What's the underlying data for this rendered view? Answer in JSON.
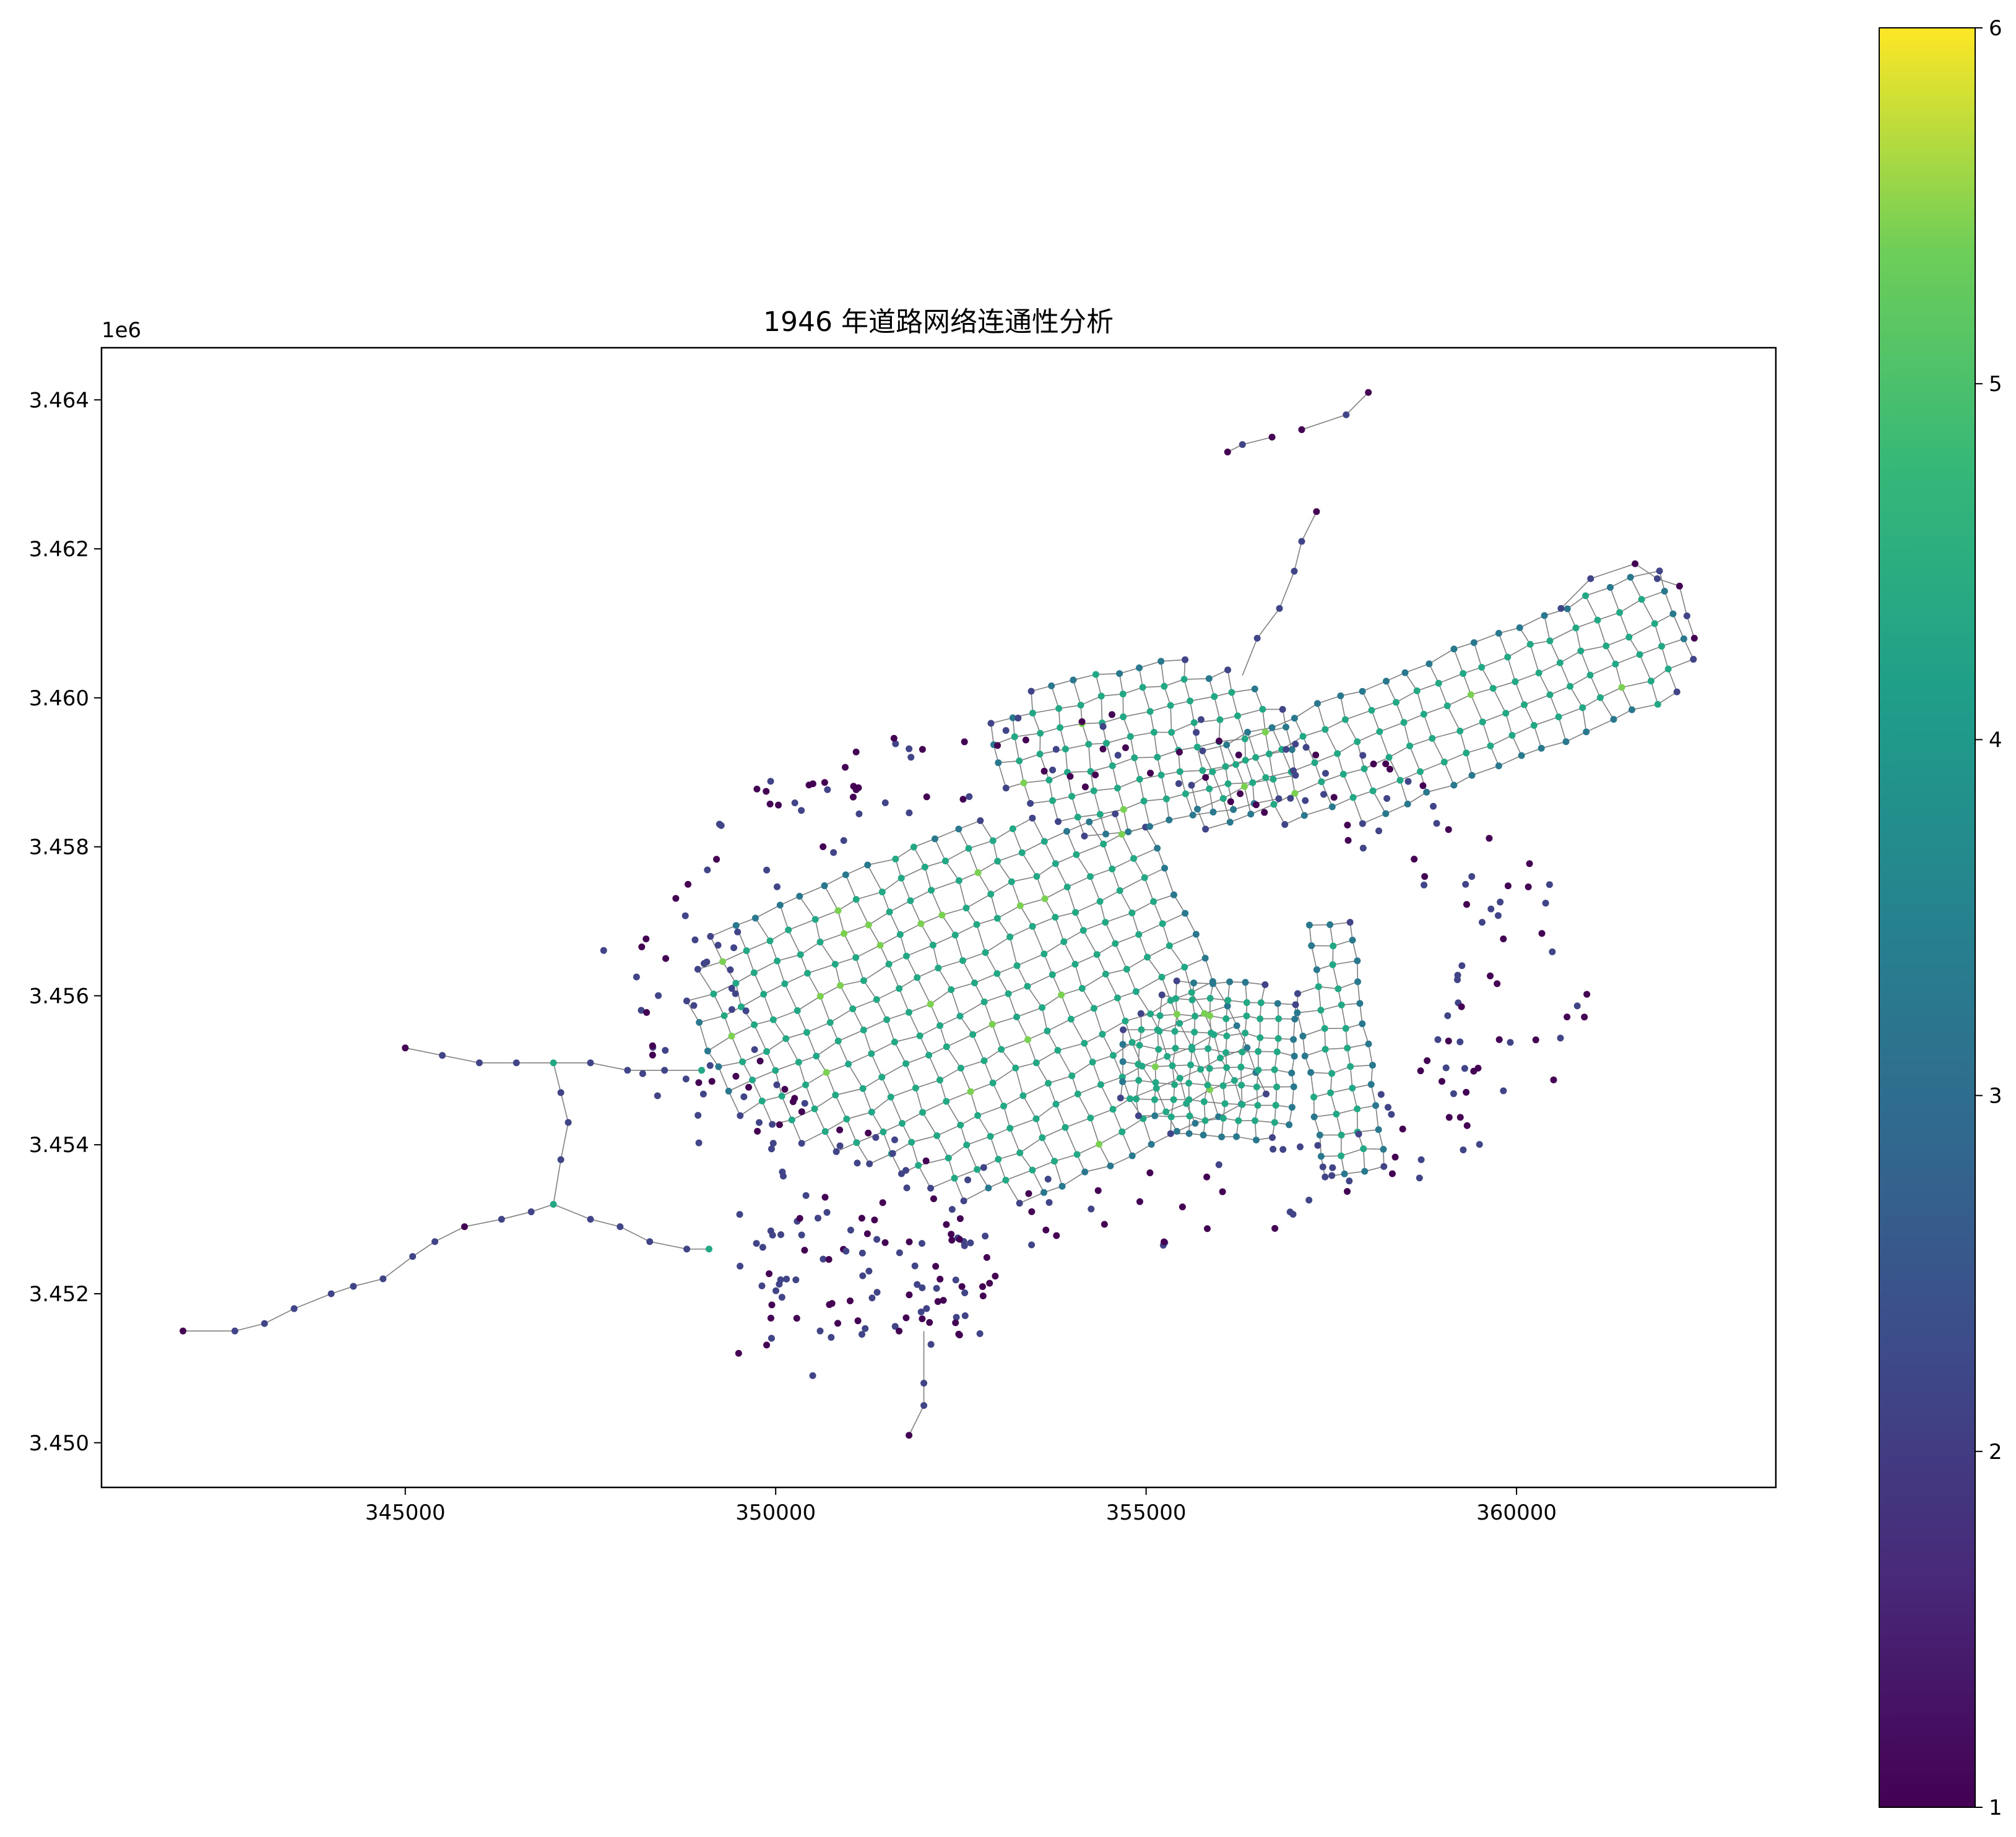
{
  "chart_data": {
    "type": "scatter",
    "title": "1946 年道路网络连通性分析",
    "xlabel": "",
    "ylabel": "",
    "xlim": [
      340900,
      363500
    ],
    "ylim": [
      3449400,
      3464700
    ],
    "y_offset_label": "1e6",
    "x_ticks": [
      345000,
      350000,
      355000,
      360000
    ],
    "x_tick_labels": [
      "345000",
      "350000",
      "355000",
      "360000"
    ],
    "y_ticks": [
      3450000,
      3452000,
      3454000,
      3456000,
      3458000,
      3460000,
      3462000,
      3464000
    ],
    "y_tick_labels": [
      "3.450",
      "3.452",
      "3.454",
      "3.456",
      "3.458",
      "3.460",
      "3.462",
      "3.464"
    ],
    "colorbar": {
      "colormap": "viridis",
      "range": [
        1,
        6
      ],
      "ticks": [
        1,
        2,
        3,
        4,
        5,
        6
      ],
      "tick_labels": [
        "1",
        "2",
        "3",
        "4",
        "5",
        "6"
      ]
    },
    "edge_color": "#808080",
    "note_points": "node value = degree (1–6), colored by viridis",
    "points": [
      [
        342000,
        3451500,
        1
      ],
      [
        342700,
        3451500,
        2
      ],
      [
        343100,
        3451600,
        2
      ],
      [
        343500,
        3451800,
        2
      ],
      [
        344000,
        3452000,
        2
      ],
      [
        344300,
        3452100,
        2
      ],
      [
        344700,
        3452200,
        2
      ],
      [
        345100,
        3452500,
        2
      ],
      [
        345400,
        3452700,
        2
      ],
      [
        345800,
        3452900,
        1
      ],
      [
        346300,
        3453000,
        2
      ],
      [
        346700,
        3453100,
        2
      ],
      [
        347000,
        3453200,
        4
      ],
      [
        347500,
        3453000,
        2
      ],
      [
        347900,
        3452900,
        2
      ],
      [
        348300,
        3452700,
        2
      ],
      [
        348800,
        3452600,
        2
      ],
      [
        349100,
        3452600,
        4
      ],
      [
        345000,
        3455300,
        1
      ],
      [
        345500,
        3455200,
        2
      ],
      [
        346000,
        3455100,
        2
      ],
      [
        346500,
        3455100,
        2
      ],
      [
        347000,
        3455100,
        4
      ],
      [
        347500,
        3455100,
        2
      ],
      [
        348000,
        3455000,
        2
      ],
      [
        348500,
        3455000,
        2
      ],
      [
        349000,
        3455000,
        4
      ],
      [
        347100,
        3454700,
        2
      ],
      [
        347200,
        3454300,
        2
      ],
      [
        347100,
        3453800,
        2
      ],
      [
        351800,
        3450100,
        1
      ],
      [
        352000,
        3450500,
        2
      ],
      [
        352000,
        3450800,
        2
      ],
      [
        349500,
        3451200,
        1
      ],
      [
        350500,
        3450900,
        2
      ],
      [
        350600,
        3451500,
        2
      ],
      [
        358000,
        3464100,
        1
      ],
      [
        357700,
        3463800,
        2
      ],
      [
        357100,
        3463600,
        1
      ],
      [
        356100,
        3463300,
        1
      ],
      [
        356300,
        3463400,
        2
      ],
      [
        356700,
        3463500,
        1
      ],
      [
        357300,
        3462500,
        1
      ],
      [
        357100,
        3462100,
        2
      ],
      [
        357000,
        3461700,
        2
      ],
      [
        356800,
        3461200,
        2
      ],
      [
        356500,
        3460800,
        2
      ],
      [
        362400,
        3460800,
        1
      ],
      [
        362300,
        3461100,
        2
      ],
      [
        362200,
        3461500,
        1
      ],
      [
        361900,
        3461600,
        2
      ],
      [
        361600,
        3461800,
        1
      ],
      [
        361000,
        3461600,
        2
      ],
      [
        360600,
        3461200,
        2
      ]
    ],
    "grid_network": {
      "description": "dense street grid around 349000–362000 E, 3452000–3461000 N"
    }
  }
}
